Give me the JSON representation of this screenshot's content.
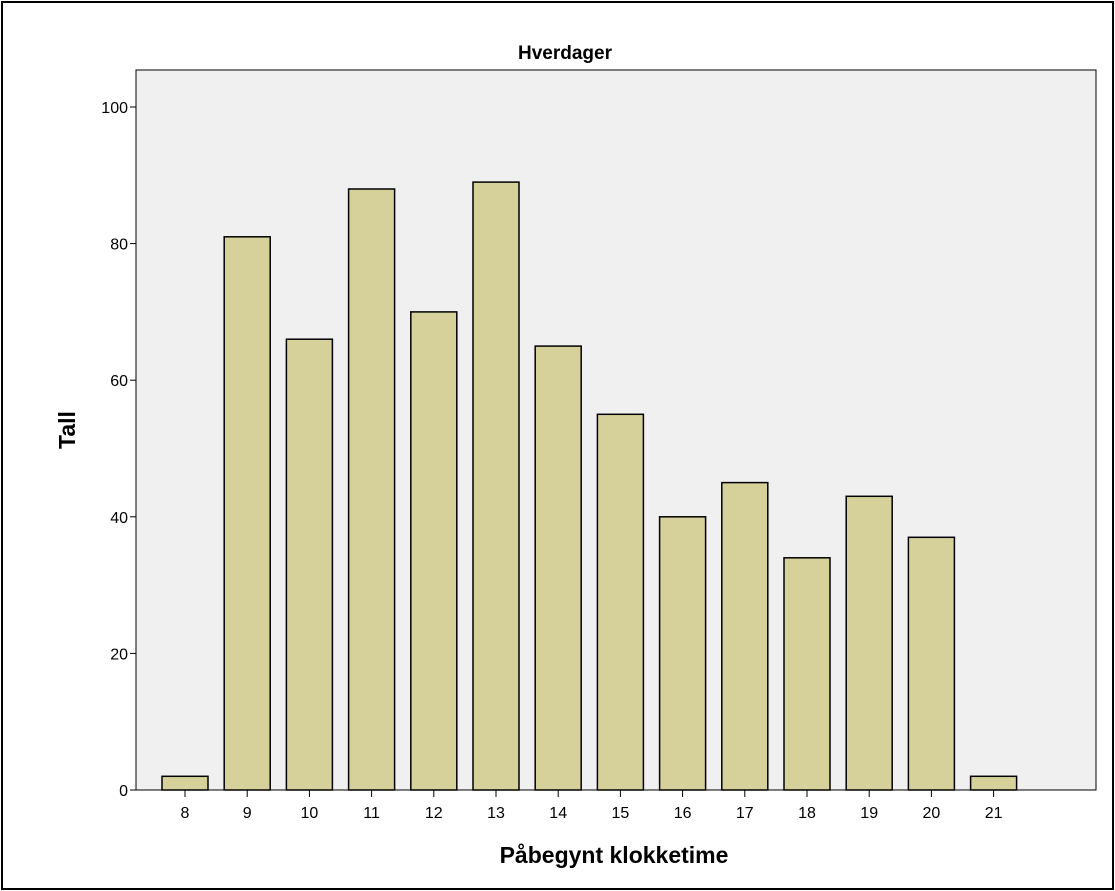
{
  "chart_data": {
    "type": "bar",
    "title": "Hverdager",
    "xlabel": "Påbegynt klokketime",
    "ylabel": "Tall",
    "categories": [
      "8",
      "9",
      "10",
      "11",
      "12",
      "13",
      "14",
      "15",
      "16",
      "17",
      "18",
      "19",
      "20",
      "21"
    ],
    "values": [
      2,
      81,
      66,
      88,
      70,
      89,
      65,
      55,
      40,
      45,
      34,
      43,
      37,
      2
    ],
    "ylim": [
      0,
      100
    ],
    "yticks": [
      "0",
      "20",
      "40",
      "60",
      "80",
      "100"
    ],
    "grid": false,
    "legend": "none",
    "colors": {
      "bar_fill": "#d6d19a",
      "bar_stroke": "#000000",
      "plot_background": "#f0f0f0",
      "frame": "#000000"
    }
  }
}
